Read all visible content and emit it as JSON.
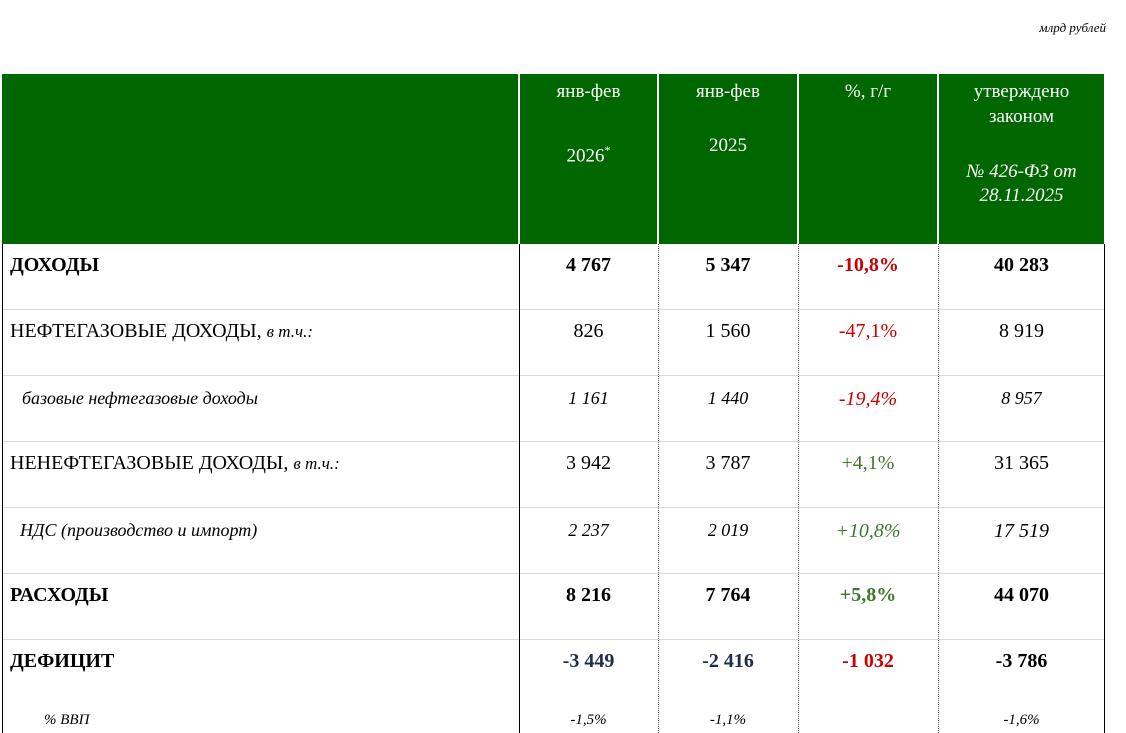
{
  "unit_note": "млрд рублей",
  "header": {
    "col1_line1": "янв-фев",
    "col1_line2": "2026",
    "col1_sup": "*",
    "col2_line1": "янв-фев",
    "col2_line2": "2025",
    "col3_line1": "%, г/г",
    "col4_line1": "утверждено",
    "col4_line2": "законом",
    "col4_line3": "№ 426-ФЗ от",
    "col4_line4": "28.11.2025"
  },
  "rows": [
    {
      "label": "ДОХОДЫ",
      "label_suffix": "",
      "v2026": "4 767",
      "v2025": "5 347",
      "yoy": "-10,8%",
      "law": "40 283"
    },
    {
      "label": "НЕФТЕГАЗОВЫЕ ДОХОДЫ,",
      "label_suffix": "в т.ч.:",
      "v2026": "826",
      "v2025": "1 560",
      "yoy": "-47,1%",
      "law": "8 919"
    },
    {
      "label": "базовые нефтегазовые доходы",
      "label_suffix": "",
      "v2026": "1 161",
      "v2025": "1 440",
      "yoy": "-19,4%",
      "law": "8 957"
    },
    {
      "label": "НЕНЕФТЕГАЗОВЫЕ ДОХОДЫ,",
      "label_suffix": "в т.ч.:",
      "v2026": "3 942",
      "v2025": "3 787",
      "yoy": "+4,1%",
      "law": "31 365"
    },
    {
      "label": "НДС (производство и импорт)",
      "label_suffix": "",
      "v2026": "2 237",
      "v2025": "2 019",
      "yoy": "+10,8%",
      "law": "17 519"
    },
    {
      "label": "РАСХОДЫ",
      "label_suffix": "",
      "v2026": "8 216",
      "v2025": "7 764",
      "yoy": "+5,8%",
      "law": "44 070"
    },
    {
      "label": "ДЕФИЦИТ",
      "label_suffix": "",
      "v2026": "-3 449",
      "v2025": "-2 416",
      "yoy": "-1 032",
      "law": "-3 786"
    }
  ],
  "gdp": {
    "label": "% ВВП",
    "v2026": "-1,5%",
    "v2025": "-1,1%",
    "law": "-1,6%"
  },
  "colors": {
    "header_bg": "#006600",
    "negative": "#cc0000",
    "positive": "#3a7a2a"
  }
}
